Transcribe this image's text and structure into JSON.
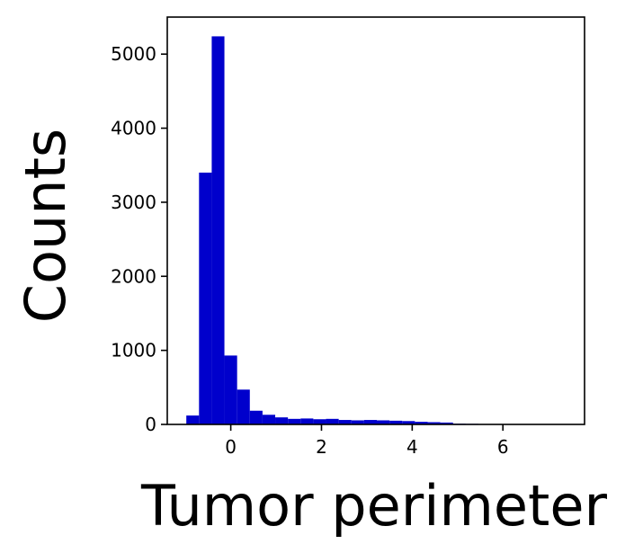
{
  "chart_data": {
    "type": "bar",
    "title": "",
    "xlabel": "Tumor perimeter",
    "ylabel": "Counts",
    "xlim": [
      -1.4,
      7.8
    ],
    "ylim": [
      0,
      5500
    ],
    "xticks": [
      0,
      2,
      4,
      6
    ],
    "yticks": [
      0,
      1000,
      2000,
      3000,
      4000,
      5000
    ],
    "grid": false,
    "bin_edges": [
      -0.98,
      -0.7,
      -0.42,
      -0.14,
      0.14,
      0.42,
      0.7,
      0.98,
      1.26,
      1.54,
      1.82,
      2.1,
      2.38,
      2.66,
      2.94,
      3.22,
      3.5,
      3.78,
      4.06,
      4.34,
      4.62,
      4.9,
      5.18,
      5.46,
      5.74,
      6.02,
      6.3,
      6.58,
      6.86,
      7.14,
      7.42
    ],
    "values": [
      120,
      3400,
      5240,
      930,
      470,
      185,
      130,
      95,
      75,
      80,
      70,
      75,
      60,
      55,
      60,
      55,
      50,
      45,
      35,
      30,
      25,
      10,
      8,
      6,
      5,
      4,
      3,
      3,
      2,
      2
    ],
    "bar_color": "#0000cc"
  }
}
